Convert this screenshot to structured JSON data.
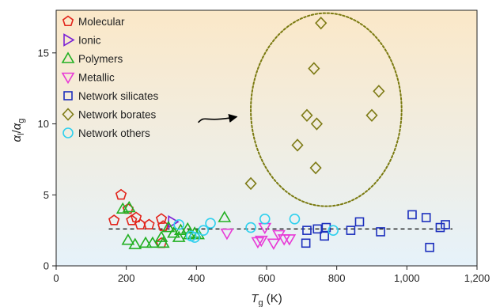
{
  "chart_data": {
    "type": "scatter",
    "title": "",
    "xlabel": {
      "main": "T",
      "sub": "g",
      "unit": " (K)"
    },
    "ylabel": {
      "a1": "α",
      "s1": "l",
      "slash": "/",
      "a2": "α",
      "s2": "g"
    },
    "xlim": [
      0,
      1200
    ],
    "ylim": [
      0,
      18
    ],
    "x_ticks": [
      {
        "value": 0,
        "label": "0"
      },
      {
        "value": 200,
        "label": "200"
      },
      {
        "value": 400,
        "label": "400"
      },
      {
        "value": 600,
        "label": "600"
      },
      {
        "value": 800,
        "label": "800"
      },
      {
        "value": 1000,
        "label": "1,000"
      },
      {
        "value": 1200,
        "label": "1,200"
      }
    ],
    "y_ticks": [
      {
        "value": 0,
        "label": "0"
      },
      {
        "value": 5,
        "label": "5"
      },
      {
        "value": 10,
        "label": "10"
      },
      {
        "value": 15,
        "label": "15"
      }
    ],
    "grid": false,
    "legend_position": "top-left",
    "background_gradient": {
      "top": "#fbe8c8",
      "bottom": "#e6f2fa"
    },
    "series": [
      {
        "name": "Molecular",
        "marker": "pentagon",
        "color": "#e2231a",
        "points": [
          [
            165,
            3.2
          ],
          [
            185,
            5.0
          ],
          [
            205,
            4.0
          ],
          [
            215,
            3.2
          ],
          [
            228,
            3.4
          ],
          [
            240,
            2.9
          ],
          [
            265,
            2.9
          ],
          [
            300,
            3.3
          ],
          [
            305,
            2.8
          ],
          [
            300,
            1.6
          ]
        ]
      },
      {
        "name": "Ionic",
        "marker": "triangle-right",
        "color": "#7b22d6",
        "points": [
          [
            332,
            3.1
          ]
        ]
      },
      {
        "name": "Polymers",
        "marker": "triangle-up",
        "color": "#22b022",
        "points": [
          [
            190,
            4.0
          ],
          [
            208,
            4.1
          ],
          [
            205,
            1.8
          ],
          [
            225,
            1.5
          ],
          [
            255,
            1.6
          ],
          [
            275,
            1.6
          ],
          [
            300,
            2.0
          ],
          [
            305,
            1.6
          ],
          [
            320,
            2.7
          ],
          [
            335,
            2.3
          ],
          [
            350,
            2.0
          ],
          [
            355,
            2.5
          ],
          [
            375,
            2.6
          ],
          [
            380,
            2.2
          ],
          [
            395,
            2.3
          ],
          [
            405,
            2.2
          ],
          [
            480,
            3.4
          ]
        ]
      },
      {
        "name": "Metallic",
        "marker": "triangle-down",
        "color": "#e83ad6",
        "points": [
          [
            487,
            2.3
          ],
          [
            575,
            1.7
          ],
          [
            585,
            1.8
          ],
          [
            595,
            2.7
          ],
          [
            620,
            1.6
          ],
          [
            635,
            2.2
          ],
          [
            650,
            1.9
          ],
          [
            665,
            1.9
          ]
        ]
      },
      {
        "name": "Network silicates",
        "marker": "square",
        "color": "#1c2fbd",
        "points": [
          [
            712,
            1.6
          ],
          [
            715,
            2.5
          ],
          [
            745,
            2.6
          ],
          [
            765,
            2.1
          ],
          [
            770,
            2.7
          ],
          [
            840,
            2.5
          ],
          [
            865,
            3.1
          ],
          [
            925,
            2.4
          ],
          [
            1015,
            3.6
          ],
          [
            1055,
            3.4
          ],
          [
            1065,
            1.3
          ],
          [
            1095,
            2.7
          ],
          [
            1110,
            2.9
          ]
        ]
      },
      {
        "name": "Network borates",
        "marker": "diamond",
        "color": "#7e7b16",
        "points": [
          [
            555,
            5.8
          ],
          [
            688,
            8.5
          ],
          [
            715,
            10.6
          ],
          [
            735,
            13.9
          ],
          [
            740,
            6.9
          ],
          [
            743,
            10.0
          ],
          [
            755,
            17.1
          ],
          [
            900,
            10.6
          ],
          [
            920,
            12.3
          ]
        ]
      },
      {
        "name": "Network others",
        "marker": "circle",
        "color": "#2fd0ee",
        "points": [
          [
            350,
            2.9
          ],
          [
            385,
            2.1
          ],
          [
            395,
            2.0
          ],
          [
            420,
            2.5
          ],
          [
            440,
            3.0
          ],
          [
            555,
            2.7
          ],
          [
            595,
            3.3
          ],
          [
            680,
            3.3
          ],
          [
            790,
            2.5
          ]
        ]
      }
    ],
    "reference_line": {
      "y": 2.6,
      "x_start": 150,
      "x_end": 1130,
      "style": "dashed",
      "color": "#000000"
    },
    "annotation_ellipse": {
      "cx": 770,
      "cy": 11.0,
      "rx": 215,
      "ry": 6.8,
      "color": "#7a7a10",
      "style": "dotted"
    },
    "annotation_arrow": {
      "from": [
        405,
        10.1
      ],
      "to": [
        515,
        10.5
      ],
      "color": "#000000"
    }
  }
}
